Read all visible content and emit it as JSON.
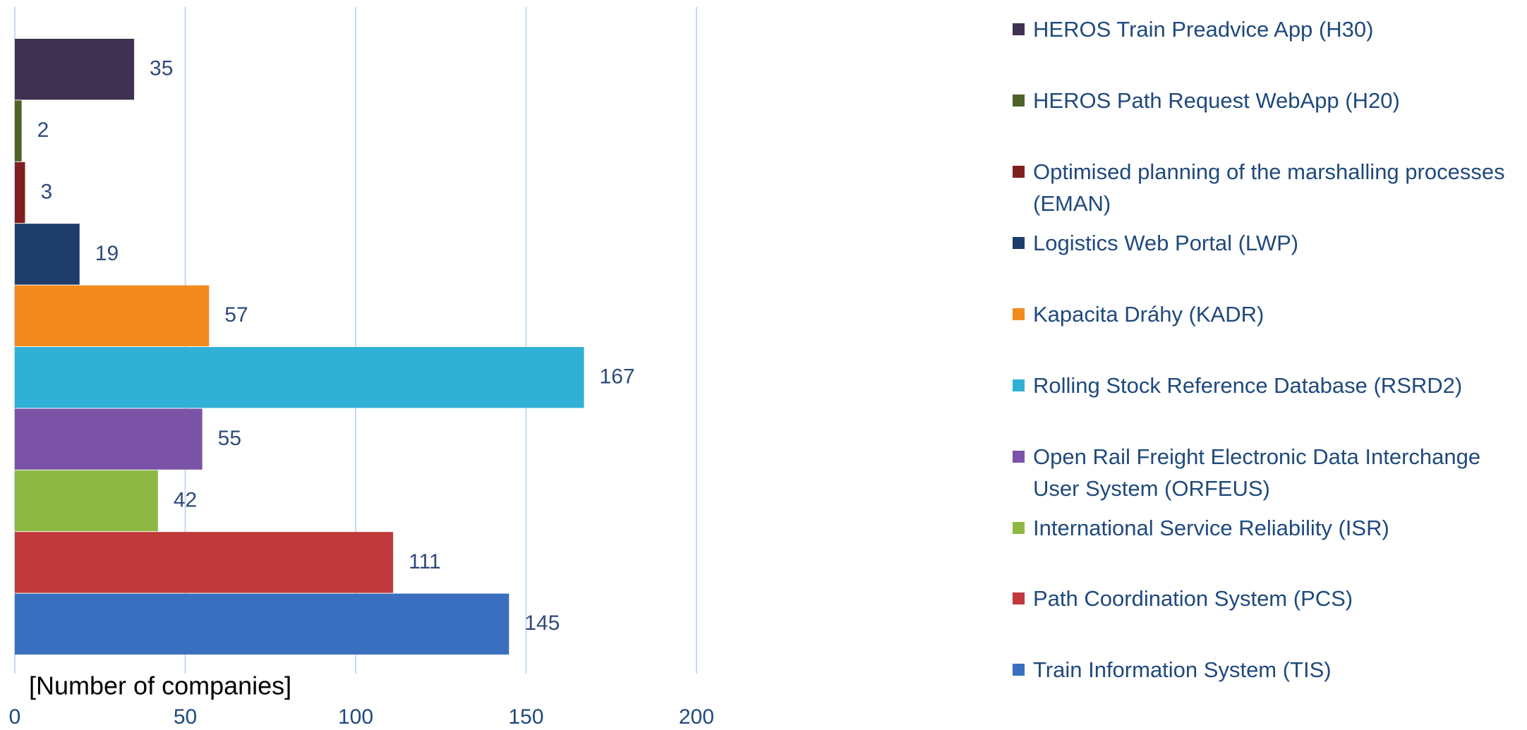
{
  "chart_data": {
    "type": "bar",
    "orientation": "horizontal",
    "x_label": "[Number of companies]",
    "categories": [
      "HEROS Train Preadvice App (H30)",
      "HEROS Path Request WebApp (H20)",
      "Optimised planning of the marshalling processes (EMAN)",
      "Logistics Web Portal (LWP)",
      "Kapacita Dráhy (KADR)",
      "Rolling Stock Reference Database (RSRD2)",
      "Open Rail Freight Electronic Data Interchange User System (ORFEUS)",
      "International Service Reliability (ISR)",
      "Path Coordination System (PCS)",
      "Train Information System (TIS)"
    ],
    "values": [
      35,
      2,
      3,
      19,
      57,
      167,
      55,
      42,
      111,
      145
    ],
    "colors": [
      "#3f3151",
      "#4f6228",
      "#7f1f1f",
      "#1f3d6b",
      "#f28a1e",
      "#31b0d5",
      "#7a53a6",
      "#8db843",
      "#c0393b",
      "#3a6fbf"
    ],
    "xlim": [
      0,
      200
    ],
    "xticks": [
      0,
      50,
      100,
      150,
      200
    ],
    "grid": true,
    "legend": "right"
  }
}
